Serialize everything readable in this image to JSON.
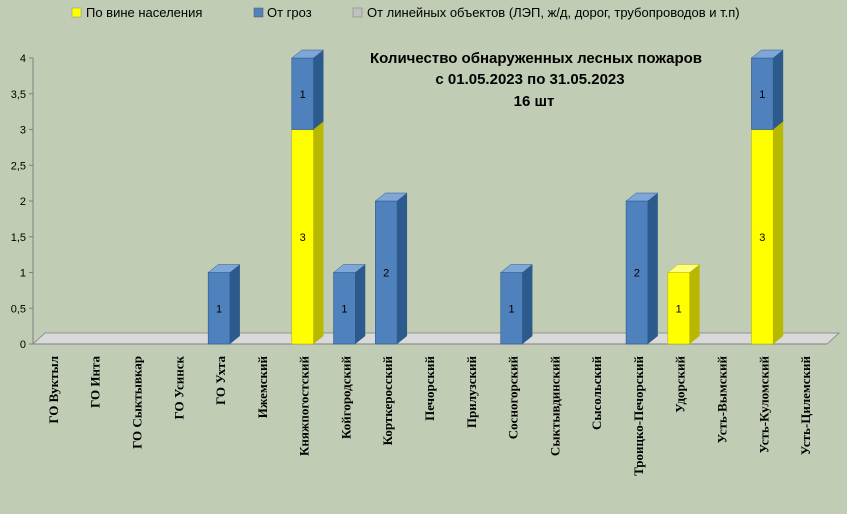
{
  "chart_data": {
    "type": "bar",
    "stacked": true,
    "title": [
      "Количество обнаруженных лесных пожаров",
      "с 01.05.2023  по  31.05.2023",
      "16 шт"
    ],
    "categories": [
      "ГО Вуктыл",
      "ГО Инта",
      "ГО Сыктывкар",
      "ГО Усинск",
      "ГО Ухта",
      "Ижемский",
      "Княжпогостский",
      "Койгородский",
      "Корткеросский",
      "Печорский",
      "Прилузский",
      "Сосногорский",
      "Сыктывдинский",
      "Сысольский",
      "Троицко-Печорский",
      "Удорский",
      "Усть-Вымский",
      "Усть-Куломский",
      "Усть-Цилемский"
    ],
    "series": [
      {
        "name": "По вине населения",
        "color": "#ffff00",
        "side_color": "#b8b800",
        "top_color": "#ffff80",
        "values": [
          0,
          0,
          0,
          0,
          0,
          0,
          3,
          0,
          0,
          0,
          0,
          0,
          0,
          0,
          0,
          1,
          0,
          3,
          0
        ]
      },
      {
        "name": "От гроз",
        "color": "#4f81bd",
        "side_color": "#2d5a8c",
        "top_color": "#7ea6d6",
        "values": [
          0,
          0,
          0,
          0,
          1,
          0,
          1,
          1,
          2,
          0,
          0,
          1,
          0,
          0,
          2,
          0,
          0,
          1,
          0
        ]
      },
      {
        "name": "От линейных объектов (ЛЭП, ж/д, дорог, трубопроводов  и т.п)",
        "color": "#c0c0c0",
        "side_color": "#909090",
        "top_color": "#e0e0e0",
        "values": [
          0,
          0,
          0,
          0,
          0,
          0,
          0,
          0,
          0,
          0,
          0,
          0,
          0,
          0,
          0,
          0,
          0,
          0,
          0
        ]
      }
    ],
    "y_ticks": [
      "0",
      "0,5",
      "1",
      "1,5",
      "2",
      "2,5",
      "3",
      "3,5",
      "4"
    ],
    "ylim": [
      0,
      4
    ],
    "legend_position": "top",
    "grid": false
  }
}
